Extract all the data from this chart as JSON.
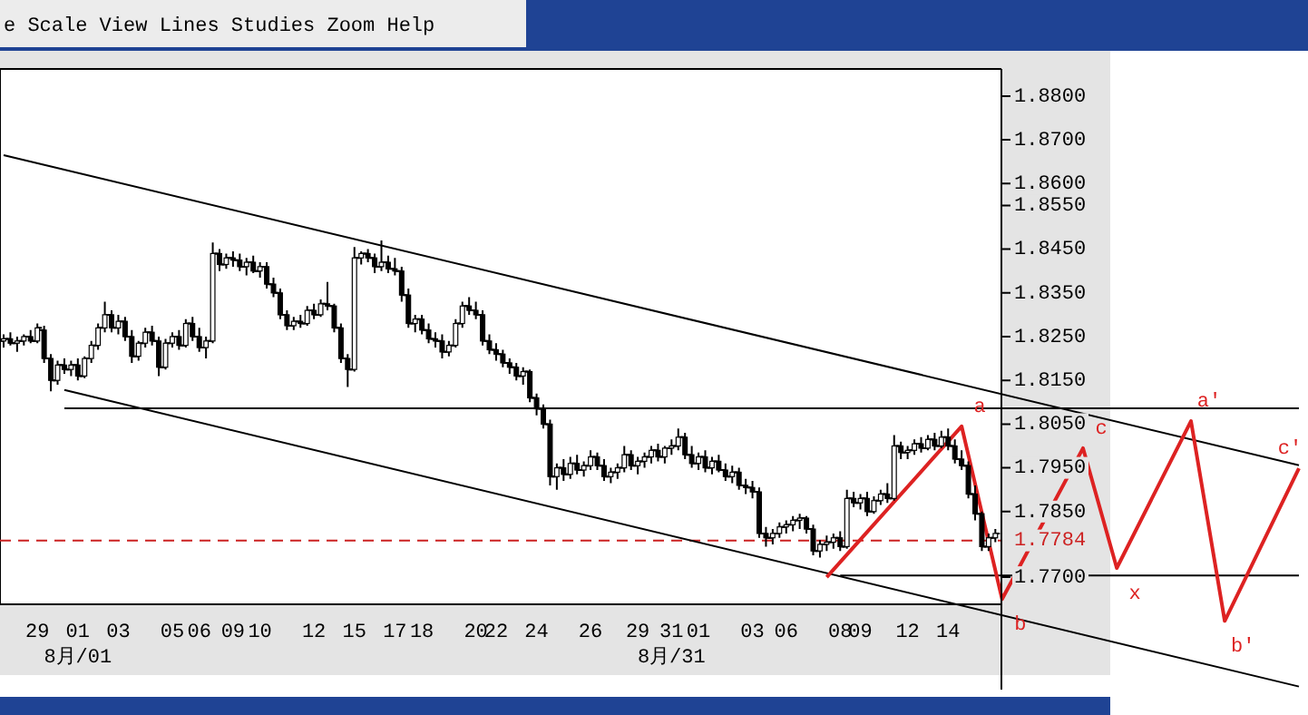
{
  "chart_data": {
    "type": "candlestick",
    "annotations": [
      "e Scale  View  Lines  Studies  Zoom  Help",
      "a",
      "b",
      "c",
      "x",
      "a'",
      "b'",
      "c'"
    ],
    "categories": [
      null,
      null,
      null,
      null,
      null,
      "29",
      null,
      null,
      null,
      null,
      null,
      "01\n8月/01",
      null,
      null,
      null,
      null,
      null,
      "03",
      null,
      null,
      null,
      null,
      null,
      null,
      null,
      "05",
      null,
      null,
      null,
      "06",
      null,
      null,
      null,
      null,
      "09",
      null,
      null,
      null,
      "10",
      null,
      null,
      null,
      null,
      null,
      null,
      null,
      "12",
      null,
      null,
      null,
      null,
      null,
      "15",
      null,
      null,
      null,
      null,
      null,
      "17",
      null,
      null,
      null,
      "18",
      null,
      null,
      null,
      null,
      null,
      null,
      null,
      "20",
      null,
      null,
      "22",
      null,
      null,
      null,
      null,
      null,
      "24",
      null,
      null,
      null,
      null,
      null,
      null,
      null,
      "26",
      null,
      null,
      null,
      null,
      null,
      null,
      "29",
      null,
      null,
      null,
      null,
      "31\n8月/31",
      null,
      null,
      null,
      "01",
      null,
      null,
      null,
      null,
      null,
      null,
      null,
      "03",
      null,
      null,
      null,
      null,
      "06",
      null,
      null,
      null,
      null,
      null,
      null,
      null,
      "08",
      null,
      null,
      "09",
      null,
      null,
      null,
      null,
      null,
      null,
      "12",
      null,
      null,
      null,
      null,
      null,
      "14",
      null,
      null,
      null,
      null,
      null,
      null,
      null,
      null,
      null,
      null,
      null,
      null,
      null,
      null,
      null,
      null,
      null,
      null,
      null,
      null,
      null,
      null,
      null,
      null,
      null,
      null,
      null,
      null,
      null,
      null,
      null,
      null,
      null,
      null,
      null,
      null,
      null,
      null,
      null,
      null,
      null,
      null,
      null,
      null,
      null,
      null,
      null,
      null,
      null,
      null,
      null,
      null
    ],
    "color": "#000000",
    "ohlc": [
      [
        1.824,
        1.8255,
        1.8225,
        1.8245
      ],
      [
        1.8245,
        1.826,
        1.823,
        1.8235
      ],
      [
        1.8235,
        1.825,
        1.8215,
        1.824
      ],
      [
        1.824,
        1.8255,
        1.823,
        1.825
      ],
      [
        1.825,
        1.8265,
        1.8235,
        1.824
      ],
      [
        1.824,
        1.828,
        1.8235,
        1.827
      ],
      [
        1.8265,
        1.8275,
        1.819,
        1.82
      ],
      [
        1.82,
        1.821,
        1.8125,
        1.815
      ],
      [
        1.815,
        1.8195,
        1.814,
        1.8185
      ],
      [
        1.8185,
        1.82,
        1.8165,
        1.8175
      ],
      [
        1.8175,
        1.8195,
        1.816,
        1.8185
      ],
      [
        1.8185,
        1.82,
        1.815,
        1.816
      ],
      [
        1.816,
        1.8205,
        1.8155,
        1.82
      ],
      [
        1.82,
        1.824,
        1.819,
        1.823
      ],
      [
        1.823,
        1.828,
        1.822,
        1.827
      ],
      [
        1.827,
        1.833,
        1.826,
        1.83
      ],
      [
        1.83,
        1.831,
        1.826,
        1.827
      ],
      [
        1.827,
        1.83,
        1.8255,
        1.8285
      ],
      [
        1.8285,
        1.8295,
        1.824,
        1.825
      ],
      [
        1.825,
        1.8265,
        1.819,
        1.8205
      ],
      [
        1.8205,
        1.824,
        1.8195,
        1.8235
      ],
      [
        1.8235,
        1.827,
        1.8225,
        1.826
      ],
      [
        1.826,
        1.8275,
        1.823,
        1.824
      ],
      [
        1.824,
        1.825,
        1.816,
        1.818
      ],
      [
        1.818,
        1.8245,
        1.8175,
        1.8235
      ],
      [
        1.8235,
        1.826,
        1.8225,
        1.825
      ],
      [
        1.825,
        1.8265,
        1.822,
        1.823
      ],
      [
        1.823,
        1.829,
        1.8225,
        1.828
      ],
      [
        1.828,
        1.8295,
        1.824,
        1.825
      ],
      [
        1.825,
        1.827,
        1.8215,
        1.8225
      ],
      [
        1.8225,
        1.825,
        1.82,
        1.824
      ],
      [
        1.824,
        1.8465,
        1.8235,
        1.844
      ],
      [
        1.844,
        1.845,
        1.84,
        1.8415
      ],
      [
        1.8415,
        1.844,
        1.8405,
        1.843
      ],
      [
        1.843,
        1.8445,
        1.841,
        1.8425
      ],
      [
        1.8425,
        1.844,
        1.84,
        1.841
      ],
      [
        1.841,
        1.843,
        1.839,
        1.842
      ],
      [
        1.842,
        1.8435,
        1.8395,
        1.84
      ],
      [
        1.84,
        1.842,
        1.8385,
        1.841
      ],
      [
        1.841,
        1.842,
        1.836,
        1.837
      ],
      [
        1.837,
        1.8385,
        1.834,
        1.835
      ],
      [
        1.835,
        1.836,
        1.829,
        1.83
      ],
      [
        1.83,
        1.831,
        1.8265,
        1.8275
      ],
      [
        1.8275,
        1.8295,
        1.8265,
        1.8285
      ],
      [
        1.8285,
        1.83,
        1.827,
        1.828
      ],
      [
        1.828,
        1.832,
        1.8275,
        1.831
      ],
      [
        1.831,
        1.8325,
        1.829,
        1.83
      ],
      [
        1.83,
        1.8335,
        1.8295,
        1.8325
      ],
      [
        1.8325,
        1.8375,
        1.831,
        1.832
      ],
      [
        1.832,
        1.8325,
        1.826,
        1.827
      ],
      [
        1.827,
        1.828,
        1.819,
        1.82
      ],
      [
        1.82,
        1.821,
        1.8135,
        1.8175
      ],
      [
        1.8175,
        1.8455,
        1.817,
        1.843
      ],
      [
        1.843,
        1.8445,
        1.8415,
        1.844
      ],
      [
        1.844,
        1.845,
        1.842,
        1.843
      ],
      [
        1.843,
        1.844,
        1.8395,
        1.841
      ],
      [
        1.841,
        1.847,
        1.84,
        1.842
      ],
      [
        1.842,
        1.8435,
        1.8395,
        1.8405
      ],
      [
        1.8405,
        1.843,
        1.839,
        1.84
      ],
      [
        1.84,
        1.841,
        1.833,
        1.8345
      ],
      [
        1.8345,
        1.836,
        1.827,
        1.828
      ],
      [
        1.828,
        1.83,
        1.826,
        1.829
      ],
      [
        1.829,
        1.83,
        1.8255,
        1.8265
      ],
      [
        1.8265,
        1.828,
        1.8235,
        1.8245
      ],
      [
        1.8245,
        1.826,
        1.8225,
        1.824
      ],
      [
        1.824,
        1.8255,
        1.82,
        1.8215
      ],
      [
        1.8215,
        1.824,
        1.8205,
        1.823
      ],
      [
        1.823,
        1.829,
        1.8225,
        1.828
      ],
      [
        1.828,
        1.833,
        1.827,
        1.832
      ],
      [
        1.832,
        1.834,
        1.83,
        1.831
      ],
      [
        1.831,
        1.833,
        1.829,
        1.83
      ],
      [
        1.83,
        1.831,
        1.823,
        1.824
      ],
      [
        1.824,
        1.8255,
        1.821,
        1.822
      ],
      [
        1.822,
        1.8235,
        1.8195,
        1.821
      ],
      [
        1.821,
        1.822,
        1.818,
        1.819
      ],
      [
        1.819,
        1.82,
        1.8165,
        1.818
      ],
      [
        1.818,
        1.819,
        1.815,
        1.816
      ],
      [
        1.816,
        1.818,
        1.814,
        1.817
      ],
      [
        1.817,
        1.8175,
        1.81,
        1.811
      ],
      [
        1.811,
        1.812,
        1.807,
        1.8085
      ],
      [
        1.8085,
        1.8095,
        1.804,
        1.805
      ],
      [
        1.805,
        1.806,
        1.791,
        1.793
      ],
      [
        1.793,
        1.796,
        1.79,
        1.795
      ],
      [
        1.795,
        1.797,
        1.792,
        1.7935
      ],
      [
        1.7935,
        1.7975,
        1.7925,
        1.796
      ],
      [
        1.796,
        1.798,
        1.7935,
        1.7945
      ],
      [
        1.7945,
        1.7965,
        1.793,
        1.7955
      ],
      [
        1.7955,
        1.799,
        1.7945,
        1.7975
      ],
      [
        1.7975,
        1.7985,
        1.7945,
        1.7955
      ],
      [
        1.7955,
        1.797,
        1.792,
        1.793
      ],
      [
        1.793,
        1.795,
        1.7915,
        1.794
      ],
      [
        1.794,
        1.796,
        1.7925,
        1.795
      ],
      [
        1.795,
        1.8,
        1.794,
        1.798
      ],
      [
        1.798,
        1.799,
        1.7945,
        1.7955
      ],
      [
        1.7955,
        1.7975,
        1.7935,
        1.7965
      ],
      [
        1.7965,
        1.7985,
        1.795,
        1.7975
      ],
      [
        1.7975,
        1.8,
        1.796,
        1.799
      ],
      [
        1.799,
        1.8005,
        1.7965,
        1.7975
      ],
      [
        1.7975,
        1.8,
        1.796,
        1.7995
      ],
      [
        1.7995,
        1.8015,
        1.798,
        1.8
      ],
      [
        1.8,
        1.804,
        1.799,
        1.802
      ],
      [
        1.802,
        1.803,
        1.797,
        1.798
      ],
      [
        1.798,
        1.8,
        1.795,
        1.796
      ],
      [
        1.796,
        1.7985,
        1.7945,
        1.7975
      ],
      [
        1.7975,
        1.799,
        1.794,
        1.795
      ],
      [
        1.795,
        1.7975,
        1.7935,
        1.7965
      ],
      [
        1.7965,
        1.798,
        1.794,
        1.7945
      ],
      [
        1.7945,
        1.796,
        1.792,
        1.793
      ],
      [
        1.793,
        1.7955,
        1.7915,
        1.794
      ],
      [
        1.794,
        1.795,
        1.79,
        1.791
      ],
      [
        1.791,
        1.7925,
        1.789,
        1.7905
      ],
      [
        1.7905,
        1.792,
        1.788,
        1.7895
      ],
      [
        1.7895,
        1.7905,
        1.779,
        1.78
      ],
      [
        1.78,
        1.7815,
        1.777,
        1.779
      ],
      [
        1.779,
        1.781,
        1.7775,
        1.78
      ],
      [
        1.78,
        1.7825,
        1.779,
        1.7815
      ],
      [
        1.7815,
        1.783,
        1.78,
        1.782
      ],
      [
        1.782,
        1.784,
        1.7805,
        1.783
      ],
      [
        1.783,
        1.7845,
        1.781,
        1.7835
      ],
      [
        1.7835,
        1.784,
        1.78,
        1.781
      ],
      [
        1.781,
        1.782,
        1.775,
        1.776
      ],
      [
        1.776,
        1.7785,
        1.7745,
        1.7775
      ],
      [
        1.7775,
        1.7795,
        1.776,
        1.778
      ],
      [
        1.778,
        1.78,
        1.7765,
        1.779
      ],
      [
        1.779,
        1.7805,
        1.776,
        1.777
      ],
      [
        1.777,
        1.79,
        1.7765,
        1.788
      ],
      [
        1.788,
        1.7895,
        1.786,
        1.787
      ],
      [
        1.787,
        1.789,
        1.7855,
        1.788
      ],
      [
        1.788,
        1.7895,
        1.784,
        1.785
      ],
      [
        1.785,
        1.7885,
        1.7845,
        1.7875
      ],
      [
        1.7875,
        1.79,
        1.7865,
        1.789
      ],
      [
        1.789,
        1.7915,
        1.787,
        1.788
      ],
      [
        1.788,
        1.8025,
        1.7875,
        1.8
      ],
      [
        1.8,
        1.801,
        1.797,
        1.7985
      ],
      [
        1.7985,
        1.8,
        1.797,
        1.799
      ],
      [
        1.799,
        1.8015,
        1.798,
        1.8005
      ],
      [
        1.8005,
        1.802,
        1.7985,
        1.7995
      ],
      [
        1.7995,
        1.8025,
        1.799,
        1.8015
      ],
      [
        1.8015,
        1.803,
        1.799,
        1.8
      ],
      [
        1.8,
        1.8035,
        1.7995,
        1.802
      ],
      [
        1.802,
        1.804,
        1.799,
        1.8
      ],
      [
        1.8,
        1.8015,
        1.796,
        1.797
      ],
      [
        1.797,
        1.799,
        1.7945,
        1.7955
      ],
      [
        1.7955,
        1.7965,
        1.788,
        1.789
      ],
      [
        1.789,
        1.791,
        1.783,
        1.7845
      ],
      [
        1.7845,
        1.785,
        1.776,
        1.777
      ],
      [
        1.777,
        1.78,
        1.776,
        1.779
      ],
      [
        1.779,
        1.781,
        1.778,
        1.78
      ],
      null,
      null,
      null,
      null,
      null,
      null,
      null,
      null,
      null,
      null,
      null,
      null,
      null,
      null,
      null,
      null,
      null,
      null,
      null,
      null,
      null,
      null,
      null,
      null,
      null,
      null,
      null,
      null,
      null,
      null,
      null,
      null,
      null,
      null,
      null,
      null,
      null,
      null,
      null,
      null,
      null,
      null,
      null,
      null,
      null
    ],
    "series": [
      {
        "type": "line",
        "color": "#000000",
        "values": [
          1.8665,
          null,
          null,
          null,
          null,
          null,
          null,
          null,
          null,
          null,
          null,
          null,
          null,
          null,
          null,
          null,
          null,
          null,
          null,
          null,
          null,
          null,
          null,
          null,
          null,
          null,
          null,
          null,
          null,
          null,
          null,
          null,
          null,
          null,
          null,
          null,
          null,
          null,
          null,
          null,
          null,
          null,
          null,
          null,
          null,
          null,
          null,
          null,
          null,
          null,
          null,
          null,
          null,
          null,
          null,
          null,
          null,
          null,
          null,
          null,
          null,
          null,
          null,
          null,
          null,
          null,
          null,
          null,
          null,
          null,
          null,
          null,
          null,
          null,
          null,
          null,
          null,
          null,
          null,
          null,
          null,
          null,
          null,
          null,
          null,
          null,
          null,
          null,
          null,
          null,
          null,
          null,
          null,
          null,
          null,
          null,
          null,
          null,
          null,
          null,
          null,
          null,
          null,
          null,
          null,
          null,
          null,
          null,
          null,
          null,
          null,
          null,
          null,
          null,
          null,
          null,
          null,
          null,
          null,
          null,
          null,
          null,
          null,
          null,
          null,
          null,
          null,
          null,
          null,
          null,
          null,
          null,
          null,
          null,
          null,
          null,
          null,
          null,
          null,
          null,
          null,
          null,
          null,
          null,
          null,
          null,
          null,
          null,
          null,
          null,
          null,
          null,
          null,
          null,
          null,
          null,
          null,
          null,
          null,
          null,
          null,
          null,
          null,
          null,
          null,
          null,
          null,
          null,
          null,
          null,
          null,
          null,
          null,
          null,
          null,
          null,
          null,
          null,
          null,
          null,
          null,
          null,
          null,
          null,
          null,
          null,
          null,
          null,
          null,
          null,
          null,
          null,
          1.7956
        ]
      },
      {
        "type": "line",
        "color": "#000000",
        "values": [
          null,
          null,
          null,
          null,
          null,
          null,
          null,
          null,
          null,
          1.8128,
          null,
          null,
          null,
          null,
          null,
          null,
          null,
          null,
          null,
          null,
          null,
          null,
          null,
          null,
          null,
          null,
          null,
          null,
          null,
          null,
          null,
          null,
          null,
          null,
          null,
          null,
          null,
          null,
          null,
          null,
          null,
          null,
          null,
          null,
          null,
          null,
          null,
          null,
          null,
          null,
          null,
          null,
          null,
          null,
          null,
          null,
          null,
          null,
          null,
          null,
          null,
          null,
          null,
          null,
          null,
          null,
          null,
          null,
          null,
          null,
          null,
          null,
          null,
          null,
          null,
          null,
          null,
          null,
          null,
          null,
          null,
          null,
          null,
          null,
          null,
          null,
          null,
          null,
          null,
          null,
          null,
          null,
          null,
          null,
          null,
          null,
          null,
          null,
          null,
          null,
          null,
          null,
          null,
          null,
          null,
          null,
          null,
          null,
          null,
          null,
          null,
          null,
          null,
          null,
          null,
          null,
          null,
          null,
          null,
          null,
          null,
          null,
          null,
          null,
          null,
          null,
          null,
          null,
          null,
          null,
          null,
          null,
          null,
          null,
          null,
          null,
          null,
          null,
          null,
          null,
          null,
          null,
          null,
          null,
          null,
          null,
          null,
          null,
          null,
          null,
          null,
          null,
          null,
          null,
          null,
          null,
          null,
          null,
          null,
          null,
          null,
          null,
          null,
          null,
          null,
          null,
          null,
          null,
          null,
          null,
          null,
          null,
          null,
          null,
          null,
          null,
          null,
          null,
          null,
          null,
          null,
          null,
          null,
          null,
          null,
          null,
          null,
          null,
          null,
          null,
          null,
          null,
          1.745
        ]
      },
      {
        "type": "line",
        "color": "#000000",
        "values": [
          null,
          null,
          null,
          null,
          null,
          null,
          null,
          null,
          null,
          1.8086,
          null,
          null,
          null,
          null,
          null,
          null,
          null,
          null,
          null,
          null,
          null,
          null,
          null,
          null,
          null,
          null,
          null,
          null,
          null,
          null,
          null,
          null,
          null,
          null,
          null,
          null,
          null,
          null,
          null,
          null,
          null,
          null,
          null,
          null,
          null,
          null,
          null,
          null,
          null,
          null,
          null,
          null,
          null,
          null,
          null,
          null,
          null,
          null,
          null,
          null,
          null,
          null,
          null,
          null,
          null,
          null,
          null,
          null,
          null,
          null,
          null,
          null,
          null,
          null,
          null,
          null,
          null,
          null,
          null,
          null,
          null,
          null,
          null,
          null,
          null,
          null,
          null,
          null,
          null,
          null,
          null,
          null,
          null,
          null,
          null,
          null,
          null,
          null,
          null,
          null,
          null,
          null,
          null,
          null,
          null,
          null,
          null,
          null,
          null,
          null,
          null,
          null,
          null,
          null,
          null,
          null,
          null,
          null,
          null,
          null,
          null,
          null,
          null,
          null,
          null,
          null,
          null,
          null,
          null,
          null,
          null,
          null,
          null,
          null,
          null,
          null,
          null,
          null,
          null,
          null,
          null,
          null,
          null,
          null,
          null,
          null,
          null,
          null,
          null,
          null,
          null,
          null,
          null,
          null,
          null,
          null,
          null,
          null,
          null,
          null,
          null,
          null,
          null,
          null,
          null,
          null,
          null,
          null,
          null,
          null,
          null,
          null,
          null,
          null,
          null,
          null,
          null,
          null,
          null,
          null,
          null,
          null,
          null,
          null,
          null,
          null,
          null,
          null,
          null,
          null,
          null,
          null,
          1.8086
        ]
      },
      {
        "type": "line",
        "color": "#000000",
        "values": [
          null,
          null,
          null,
          null,
          null,
          null,
          null,
          null,
          null,
          null,
          null,
          null,
          null,
          null,
          null,
          null,
          null,
          null,
          null,
          null,
          null,
          null,
          null,
          null,
          null,
          null,
          null,
          null,
          null,
          null,
          null,
          null,
          null,
          null,
          null,
          null,
          null,
          null,
          null,
          null,
          null,
          null,
          null,
          null,
          null,
          null,
          null,
          null,
          null,
          null,
          null,
          null,
          null,
          null,
          null,
          null,
          null,
          null,
          null,
          null,
          null,
          null,
          null,
          null,
          null,
          null,
          null,
          null,
          null,
          null,
          null,
          null,
          null,
          null,
          null,
          null,
          null,
          null,
          null,
          null,
          null,
          null,
          null,
          null,
          null,
          null,
          null,
          null,
          null,
          null,
          null,
          null,
          null,
          null,
          null,
          null,
          null,
          null,
          null,
          null,
          null,
          null,
          null,
          null,
          null,
          null,
          null,
          null,
          null,
          null,
          null,
          null,
          null,
          null,
          null,
          null,
          null,
          null,
          null,
          null,
          null,
          null,
          null,
          null,
          1.7704,
          null,
          null,
          null,
          null,
          null,
          null,
          null,
          null,
          null,
          null,
          null,
          null,
          null,
          null,
          null,
          null,
          null,
          null,
          null,
          null,
          null,
          null,
          null,
          null,
          null,
          null,
          null,
          null,
          null,
          null,
          null,
          null,
          null,
          null,
          null,
          null,
          null,
          null,
          null,
          null,
          null,
          null,
          null,
          null,
          null,
          null,
          null,
          null,
          null,
          null,
          null,
          null,
          null,
          null,
          null,
          null,
          null,
          null,
          null,
          null,
          null,
          null,
          null,
          null,
          null,
          null,
          null,
          1.7704
        ]
      },
      {
        "type": "line",
        "color": "#dd2222",
        "values": [
          null,
          null,
          null,
          null,
          null,
          null,
          null,
          null,
          null,
          null,
          null,
          null,
          null,
          null,
          null,
          null,
          null,
          null,
          null,
          null,
          null,
          null,
          null,
          null,
          null,
          null,
          null,
          null,
          null,
          null,
          null,
          null,
          null,
          null,
          null,
          null,
          null,
          null,
          null,
          null,
          null,
          null,
          null,
          null,
          null,
          null,
          null,
          null,
          null,
          null,
          null,
          null,
          null,
          null,
          null,
          null,
          null,
          null,
          null,
          null,
          null,
          null,
          null,
          null,
          null,
          null,
          null,
          null,
          null,
          null,
          null,
          null,
          null,
          null,
          null,
          null,
          null,
          null,
          null,
          null,
          null,
          null,
          null,
          null,
          null,
          null,
          null,
          null,
          null,
          null,
          null,
          null,
          null,
          null,
          null,
          null,
          null,
          null,
          null,
          null,
          null,
          null,
          null,
          null,
          null,
          null,
          null,
          null,
          null,
          null,
          null,
          null,
          null,
          null,
          null,
          null,
          null,
          null,
          null,
          null,
          null,
          null,
          1.77,
          null,
          null,
          null,
          null,
          null,
          null,
          null,
          null,
          null,
          null,
          null,
          null,
          null,
          null,
          null,
          null,
          null,
          null,
          null,
          1.8045,
          null,
          null,
          null,
          null,
          null,
          1.765,
          null,
          null,
          null,
          null,
          null,
          null,
          null,
          null,
          null,
          null,
          null,
          1.7995,
          null,
          null,
          null,
          null,
          1.7721,
          null,
          null,
          null,
          null,
          null,
          null,
          null,
          null,
          null,
          null,
          1.8057,
          null,
          null,
          null,
          null,
          1.76,
          null,
          null,
          null,
          null,
          null,
          null,
          null,
          null,
          null,
          null,
          1.7949
        ]
      }
    ],
    "ref_lines": [
      {
        "axis": "y",
        "value": 1.7784,
        "label": "1.7784",
        "color": "#cc2222",
        "line_style": "dashed"
      }
    ],
    "ylim": [
      1.7443,
      1.8862
    ],
    "yticks": [
      {
        "value": 1.88,
        "label": "1.8800"
      },
      {
        "value": 1.87,
        "label": "1.8700"
      },
      {
        "value": 1.86,
        "label": "1.8600"
      },
      {
        "value": 1.855,
        "label": "1.8550"
      },
      {
        "value": 1.845,
        "label": "1.8450"
      },
      {
        "value": 1.835,
        "label": "1.8350"
      },
      {
        "value": 1.825,
        "label": "1.8250"
      },
      {
        "value": 1.815,
        "label": "1.8150"
      },
      {
        "value": 1.805,
        "label": "1.8050"
      },
      {
        "value": 1.795,
        "label": "1.7950"
      },
      {
        "value": 1.785,
        "label": "1.7850"
      },
      {
        "value": 1.77,
        "label": "1.7700"
      }
    ]
  }
}
